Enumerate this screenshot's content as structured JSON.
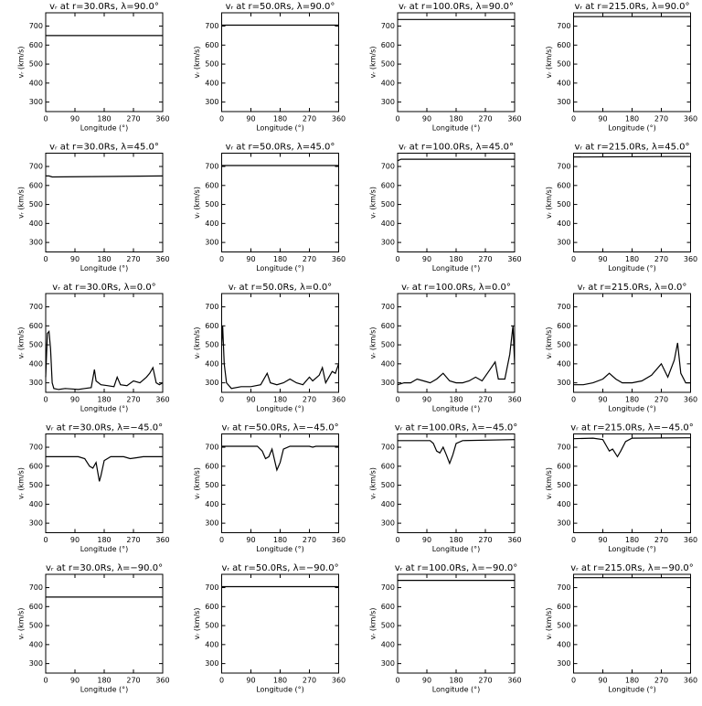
{
  "chart_data": [
    {
      "type": "line",
      "title": "vᵣ at r=30.0Rs, λ=90.0°",
      "xlabel": "Longitude (°)",
      "ylabel": "vᵣ (km/s)",
      "xlim": [
        0,
        360
      ],
      "ylim": [
        250,
        770
      ],
      "xticks": [
        0,
        90,
        180,
        270,
        360
      ],
      "yticks": [
        300,
        400,
        500,
        600,
        700
      ],
      "x": [
        0,
        360
      ],
      "values": [
        650,
        650
      ],
      "color": "#000000"
    },
    {
      "type": "line",
      "title": "vᵣ at r=50.0Rs, λ=90.0°",
      "xlabel": "Longitude (°)",
      "ylabel": "vᵣ (km/s)",
      "xlim": [
        0,
        360
      ],
      "ylim": [
        250,
        770
      ],
      "xticks": [
        0,
        90,
        180,
        270,
        360
      ],
      "yticks": [
        300,
        400,
        500,
        600,
        700
      ],
      "x": [
        0,
        360
      ],
      "values": [
        705,
        705
      ],
      "color": "#000000"
    },
    {
      "type": "line",
      "title": "vᵣ at r=100.0Rs, λ=90.0°",
      "xlabel": "Longitude (°)",
      "ylabel": "vᵣ (km/s)",
      "xlim": [
        0,
        360
      ],
      "ylim": [
        250,
        770
      ],
      "xticks": [
        0,
        90,
        180,
        270,
        360
      ],
      "yticks": [
        300,
        400,
        500,
        600,
        700
      ],
      "x": [
        0,
        360
      ],
      "values": [
        735,
        735
      ],
      "color": "#000000"
    },
    {
      "type": "line",
      "title": "vᵣ at r=215.0Rs, λ=90.0°",
      "xlabel": "Longitude (°)",
      "ylabel": "vᵣ (km/s)",
      "xlim": [
        0,
        360
      ],
      "ylim": [
        250,
        770
      ],
      "xticks": [
        0,
        90,
        180,
        270,
        360
      ],
      "yticks": [
        300,
        400,
        500,
        600,
        700
      ],
      "x": [
        0,
        360
      ],
      "values": [
        750,
        750
      ],
      "color": "#000000"
    },
    {
      "type": "line",
      "title": "vᵣ at r=30.0Rs, λ=45.0°",
      "xlabel": "Longitude (°)",
      "ylabel": "vᵣ (km/s)",
      "xlim": [
        0,
        360
      ],
      "ylim": [
        250,
        770
      ],
      "xticks": [
        0,
        90,
        180,
        270,
        360
      ],
      "yticks": [
        300,
        400,
        500,
        600,
        700
      ],
      "x": [
        0,
        10,
        20,
        360
      ],
      "values": [
        650,
        650,
        645,
        650
      ],
      "color": "#000000"
    },
    {
      "type": "line",
      "title": "vᵣ at r=50.0Rs, λ=45.0°",
      "xlabel": "Longitude (°)",
      "ylabel": "vᵣ (km/s)",
      "xlim": [
        0,
        360
      ],
      "ylim": [
        250,
        770
      ],
      "xticks": [
        0,
        90,
        180,
        270,
        360
      ],
      "yticks": [
        300,
        400,
        500,
        600,
        700
      ],
      "x": [
        0,
        360
      ],
      "values": [
        705,
        705
      ],
      "color": "#000000"
    },
    {
      "type": "line",
      "title": "vᵣ at r=100.0Rs, λ=45.0°",
      "xlabel": "Longitude (°)",
      "ylabel": "vᵣ (km/s)",
      "xlim": [
        0,
        360
      ],
      "ylim": [
        250,
        770
      ],
      "xticks": [
        0,
        90,
        180,
        270,
        360
      ],
      "yticks": [
        300,
        400,
        500,
        600,
        700
      ],
      "x": [
        0,
        10,
        360
      ],
      "values": [
        730,
        738,
        738
      ],
      "color": "#000000"
    },
    {
      "type": "line",
      "title": "vᵣ at r=215.0Rs, λ=45.0°",
      "xlabel": "Longitude (°)",
      "ylabel": "vᵣ (km/s)",
      "xlim": [
        0,
        360
      ],
      "ylim": [
        250,
        770
      ],
      "xticks": [
        0,
        90,
        180,
        270,
        360
      ],
      "yticks": [
        300,
        400,
        500,
        600,
        700
      ],
      "x": [
        0,
        300,
        360
      ],
      "values": [
        750,
        752,
        752
      ],
      "color": "#000000"
    },
    {
      "type": "line",
      "title": "vᵣ at r=30.0Rs, λ=0.0°",
      "xlabel": "Longitude (°)",
      "ylabel": "vᵣ (km/s)",
      "xlim": [
        0,
        360
      ],
      "ylim": [
        250,
        770
      ],
      "xticks": [
        0,
        90,
        180,
        270,
        360
      ],
      "yticks": [
        300,
        400,
        500,
        600,
        700
      ],
      "x": [
        0,
        5,
        10,
        15,
        20,
        25,
        40,
        60,
        80,
        100,
        120,
        140,
        150,
        155,
        170,
        190,
        210,
        220,
        230,
        250,
        270,
        290,
        310,
        320,
        330,
        340,
        350,
        360
      ],
      "values": [
        330,
        560,
        570,
        480,
        300,
        270,
        265,
        270,
        268,
        265,
        270,
        275,
        370,
        310,
        290,
        285,
        280,
        330,
        290,
        285,
        310,
        300,
        330,
        350,
        380,
        300,
        290,
        300
      ],
      "color": "#000000"
    },
    {
      "type": "line",
      "title": "vᵣ at r=50.0Rs, λ=0.0°",
      "xlabel": "Longitude (°)",
      "ylabel": "vᵣ (km/s)",
      "xlim": [
        0,
        360
      ],
      "ylim": [
        250,
        770
      ],
      "xticks": [
        0,
        90,
        180,
        270,
        360
      ],
      "yticks": [
        300,
        400,
        500,
        600,
        700
      ],
      "x": [
        0,
        3,
        8,
        15,
        30,
        60,
        90,
        120,
        140,
        150,
        170,
        190,
        210,
        230,
        250,
        270,
        280,
        300,
        310,
        320,
        340,
        350,
        360
      ],
      "values": [
        500,
        600,
        400,
        300,
        270,
        280,
        280,
        290,
        350,
        300,
        290,
        300,
        320,
        300,
        290,
        330,
        310,
        340,
        380,
        300,
        360,
        350,
        400
      ],
      "color": "#000000"
    },
    {
      "type": "line",
      "title": "vᵣ at r=100.0Rs, λ=0.0°",
      "xlabel": "Longitude (°)",
      "ylabel": "vᵣ (km/s)",
      "xlim": [
        0,
        360
      ],
      "ylim": [
        250,
        770
      ],
      "xticks": [
        0,
        90,
        180,
        270,
        360
      ],
      "yticks": [
        300,
        400,
        500,
        600,
        700
      ],
      "x": [
        0,
        20,
        40,
        60,
        80,
        100,
        120,
        140,
        160,
        180,
        200,
        220,
        240,
        260,
        280,
        300,
        310,
        330,
        345,
        355,
        360
      ],
      "values": [
        290,
        300,
        300,
        320,
        310,
        300,
        320,
        350,
        310,
        300,
        300,
        310,
        330,
        310,
        360,
        410,
        320,
        320,
        450,
        600,
        400
      ],
      "color": "#000000"
    },
    {
      "type": "line",
      "title": "vᵣ at r=215.0Rs, λ=0.0°",
      "xlabel": "Longitude (°)",
      "ylabel": "vᵣ (km/s)",
      "xlim": [
        0,
        360
      ],
      "ylim": [
        250,
        770
      ],
      "xticks": [
        0,
        90,
        180,
        270,
        360
      ],
      "yticks": [
        300,
        400,
        500,
        600,
        700
      ],
      "x": [
        0,
        30,
        60,
        90,
        110,
        130,
        150,
        180,
        210,
        240,
        270,
        290,
        310,
        320,
        330,
        345,
        360
      ],
      "values": [
        290,
        290,
        300,
        320,
        350,
        320,
        300,
        300,
        310,
        340,
        400,
        330,
        420,
        510,
        350,
        300,
        300
      ],
      "color": "#000000"
    },
    {
      "type": "line",
      "title": "vᵣ at r=30.0Rs, λ=−45.0°",
      "xlabel": "Longitude (°)",
      "ylabel": "vᵣ (km/s)",
      "xlim": [
        0,
        360
      ],
      "ylim": [
        250,
        770
      ],
      "xticks": [
        0,
        90,
        180,
        270,
        360
      ],
      "yticks": [
        300,
        400,
        500,
        600,
        700
      ],
      "x": [
        0,
        100,
        120,
        135,
        145,
        155,
        165,
        170,
        180,
        200,
        240,
        260,
        280,
        300,
        360
      ],
      "values": [
        650,
        650,
        640,
        600,
        590,
        620,
        520,
        550,
        630,
        650,
        650,
        640,
        645,
        650,
        650
      ],
      "color": "#000000"
    },
    {
      "type": "line",
      "title": "vᵣ at r=50.0Rs, λ=−45.0°",
      "xlabel": "Longitude (°)",
      "ylabel": "vᵣ (km/s)",
      "xlim": [
        0,
        360
      ],
      "ylim": [
        250,
        770
      ],
      "xticks": [
        0,
        90,
        180,
        270,
        360
      ],
      "yticks": [
        300,
        400,
        500,
        600,
        700
      ],
      "x": [
        0,
        110,
        125,
        135,
        145,
        155,
        170,
        180,
        190,
        210,
        270,
        280,
        290,
        360
      ],
      "values": [
        705,
        705,
        680,
        640,
        650,
        690,
        580,
        620,
        690,
        705,
        705,
        700,
        705,
        705
      ],
      "color": "#000000"
    },
    {
      "type": "line",
      "title": "vᵣ at r=100.0Rs, λ=−45.0°",
      "xlabel": "Longitude (°)",
      "ylabel": "vᵣ (km/s)",
      "xlim": [
        0,
        360
      ],
      "ylim": [
        250,
        770
      ],
      "xticks": [
        0,
        90,
        180,
        270,
        360
      ],
      "yticks": [
        300,
        400,
        500,
        600,
        700
      ],
      "x": [
        0,
        100,
        110,
        120,
        130,
        140,
        150,
        160,
        170,
        180,
        200,
        360
      ],
      "values": [
        735,
        735,
        720,
        680,
        670,
        700,
        660,
        615,
        660,
        720,
        735,
        740
      ],
      "color": "#000000"
    },
    {
      "type": "line",
      "title": "vᵣ at r=215.0Rs, λ=−45.0°",
      "xlabel": "Longitude (°)",
      "ylabel": "vᵣ (km/s)",
      "xlim": [
        0,
        360
      ],
      "ylim": [
        250,
        770
      ],
      "xticks": [
        0,
        90,
        180,
        270,
        360
      ],
      "yticks": [
        300,
        400,
        500,
        600,
        700
      ],
      "x": [
        0,
        60,
        90,
        100,
        110,
        120,
        135,
        145,
        160,
        180,
        360
      ],
      "values": [
        745,
        748,
        740,
        710,
        680,
        690,
        650,
        680,
        730,
        748,
        750
      ],
      "color": "#000000"
    },
    {
      "type": "line",
      "title": "vᵣ at r=30.0Rs, λ=−90.0°",
      "xlabel": "Longitude (°)",
      "ylabel": "vᵣ (km/s)",
      "xlim": [
        0,
        360
      ],
      "ylim": [
        250,
        770
      ],
      "xticks": [
        0,
        90,
        180,
        270,
        360
      ],
      "yticks": [
        300,
        400,
        500,
        600,
        700
      ],
      "x": [
        0,
        360
      ],
      "values": [
        650,
        650
      ],
      "color": "#000000"
    },
    {
      "type": "line",
      "title": "vᵣ at r=50.0Rs, λ=−90.0°",
      "xlabel": "Longitude (°)",
      "ylabel": "vᵣ (km/s)",
      "xlim": [
        0,
        360
      ],
      "ylim": [
        250,
        770
      ],
      "xticks": [
        0,
        90,
        180,
        270,
        360
      ],
      "yticks": [
        300,
        400,
        500,
        600,
        700
      ],
      "x": [
        0,
        360
      ],
      "values": [
        705,
        705
      ],
      "color": "#000000"
    },
    {
      "type": "line",
      "title": "vᵣ at r=100.0Rs, λ=−90.0°",
      "xlabel": "Longitude (°)",
      "ylabel": "vᵣ (km/s)",
      "xlim": [
        0,
        360
      ],
      "ylim": [
        250,
        770
      ],
      "xticks": [
        0,
        90,
        180,
        270,
        360
      ],
      "yticks": [
        300,
        400,
        500,
        600,
        700
      ],
      "x": [
        0,
        360
      ],
      "values": [
        738,
        738
      ],
      "color": "#000000"
    },
    {
      "type": "line",
      "title": "vᵣ at r=215.0Rs, λ=−90.0°",
      "xlabel": "Longitude (°)",
      "ylabel": "vᵣ (km/s)",
      "xlim": [
        0,
        360
      ],
      "ylim": [
        250,
        770
      ],
      "xticks": [
        0,
        90,
        180,
        270,
        360
      ],
      "yticks": [
        300,
        400,
        500,
        600,
        700
      ],
      "x": [
        0,
        360
      ],
      "values": [
        752,
        752
      ],
      "color": "#000000"
    }
  ]
}
